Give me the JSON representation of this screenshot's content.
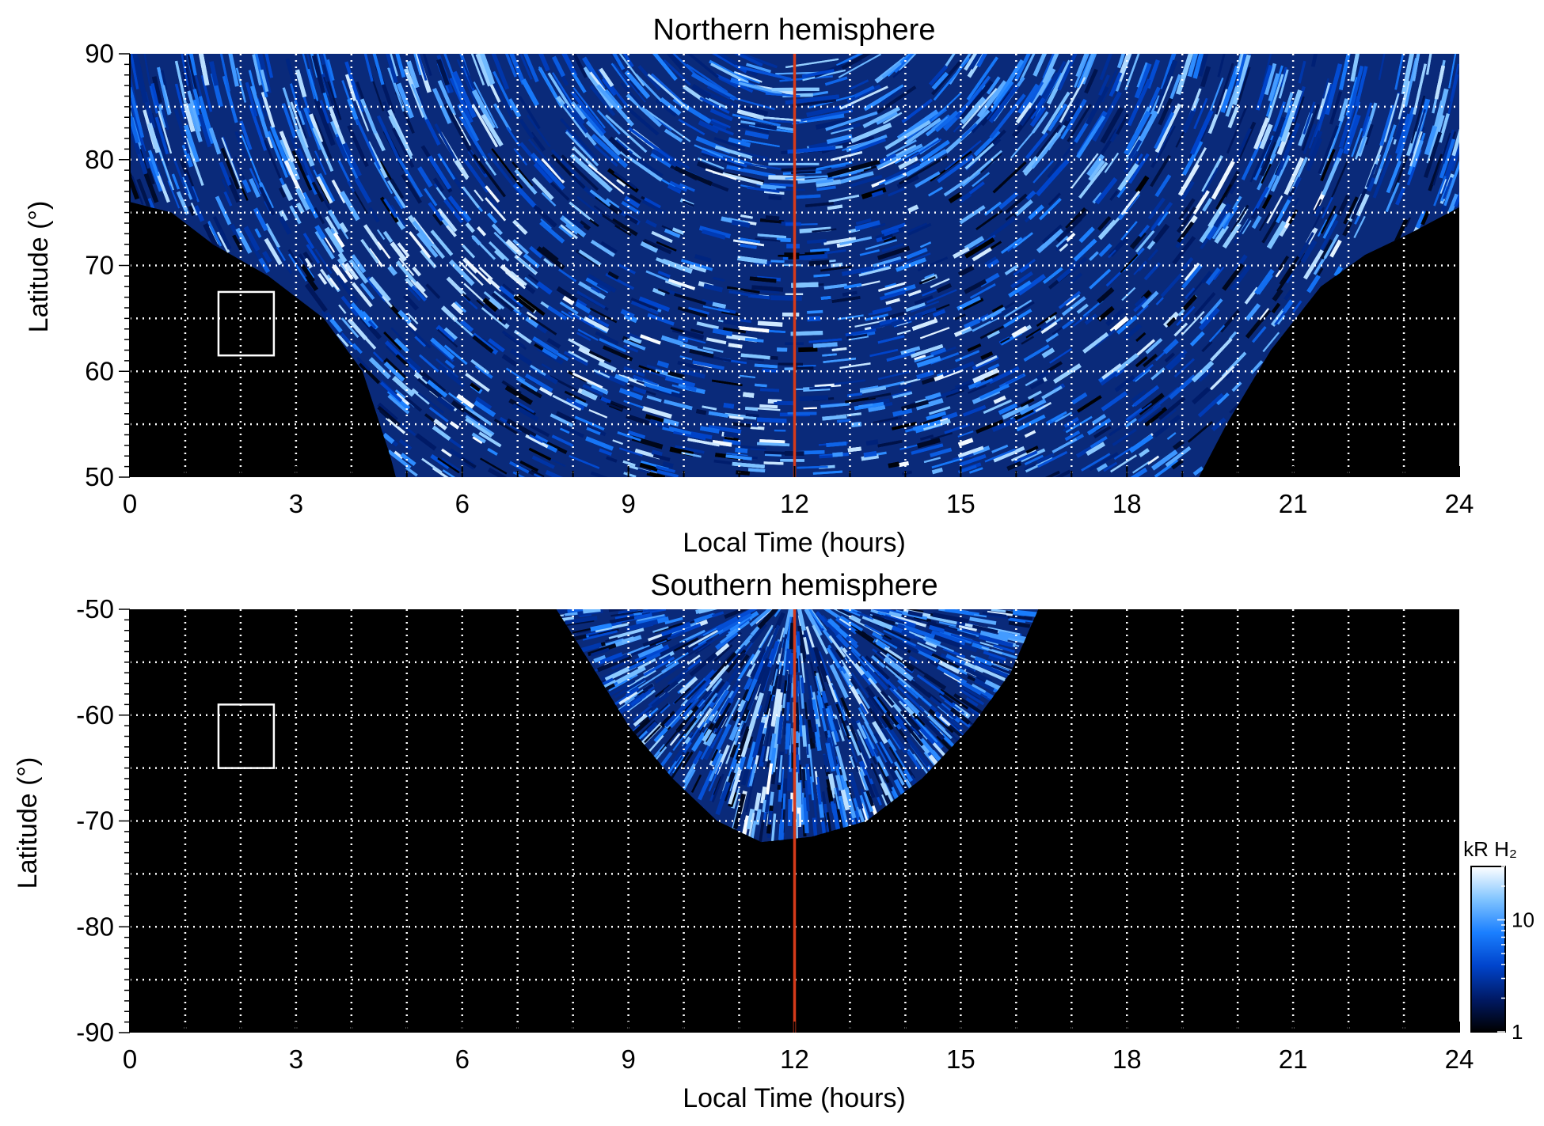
{
  "chart_data": [
    {
      "type": "heatmap",
      "title": "Northern hemisphere",
      "xlabel": "Local Time (hours)",
      "ylabel": "Latitude (°)",
      "xlim": [
        0,
        24
      ],
      "ylim": [
        50,
        90
      ],
      "x_ticks": [
        "0",
        "3",
        "6",
        "9",
        "12",
        "15",
        "18",
        "21",
        "24"
      ],
      "y_ticks": [
        "50",
        "60",
        "70",
        "80",
        "90"
      ],
      "grid": true,
      "reference_line": {
        "x": 12,
        "color": "#d43a1a"
      },
      "region_box": {
        "x": [
          1.6,
          2.6
        ],
        "y": [
          61.5,
          67.5
        ]
      },
      "emission_region": {
        "description_boundary_lat": [
          [
            0,
            76
          ],
          [
            0.75,
            75
          ],
          [
            1.5,
            72
          ],
          [
            2.5,
            69
          ],
          [
            3.5,
            65
          ],
          [
            4.2,
            60
          ],
          [
            4.7,
            52
          ],
          [
            4.8,
            50
          ],
          [
            19.3,
            50
          ],
          [
            19.8,
            55
          ],
          [
            20.6,
            62
          ],
          [
            21.5,
            68
          ],
          [
            22.3,
            71
          ],
          [
            23.1,
            73
          ],
          [
            24,
            75.5
          ]
        ],
        "bright_band": {
          "x_range": [
            3.5,
            7.2
          ],
          "lat_center": 71
        }
      }
    },
    {
      "type": "heatmap",
      "title": "Southern hemisphere",
      "xlabel": "Local Time (hours)",
      "ylabel": "Latitude (°)",
      "xlim": [
        0,
        24
      ],
      "ylim": [
        -90,
        -50
      ],
      "x_ticks": [
        "0",
        "3",
        "6",
        "9",
        "12",
        "15",
        "18",
        "21",
        "24"
      ],
      "y_ticks": [
        "-50",
        "-60",
        "-70",
        "-80",
        "-90"
      ],
      "grid": true,
      "reference_line": {
        "x": 12,
        "color": "#d43a1a"
      },
      "region_box": {
        "x": [
          1.6,
          2.6
        ],
        "y": [
          -65,
          -59
        ]
      },
      "emission_region": {
        "description_boundary_lat": [
          [
            7.7,
            -50
          ],
          [
            8.3,
            -55
          ],
          [
            9.0,
            -61
          ],
          [
            9.8,
            -66
          ],
          [
            10.6,
            -70
          ],
          [
            11.4,
            -72
          ],
          [
            12.3,
            -71.5
          ],
          [
            13.3,
            -70
          ],
          [
            14.3,
            -66
          ],
          [
            15.2,
            -61
          ],
          [
            15.9,
            -56
          ],
          [
            16.4,
            -50
          ]
        ]
      }
    }
  ],
  "colorbar": {
    "label": "kR H₂",
    "scale": "log",
    "range": [
      1,
      30
    ],
    "ticks": [
      "10",
      "1"
    ],
    "colors": [
      "#000000",
      "#001a66",
      "#0044cc",
      "#1a7fff",
      "#80c4ff",
      "#ffffff"
    ]
  }
}
